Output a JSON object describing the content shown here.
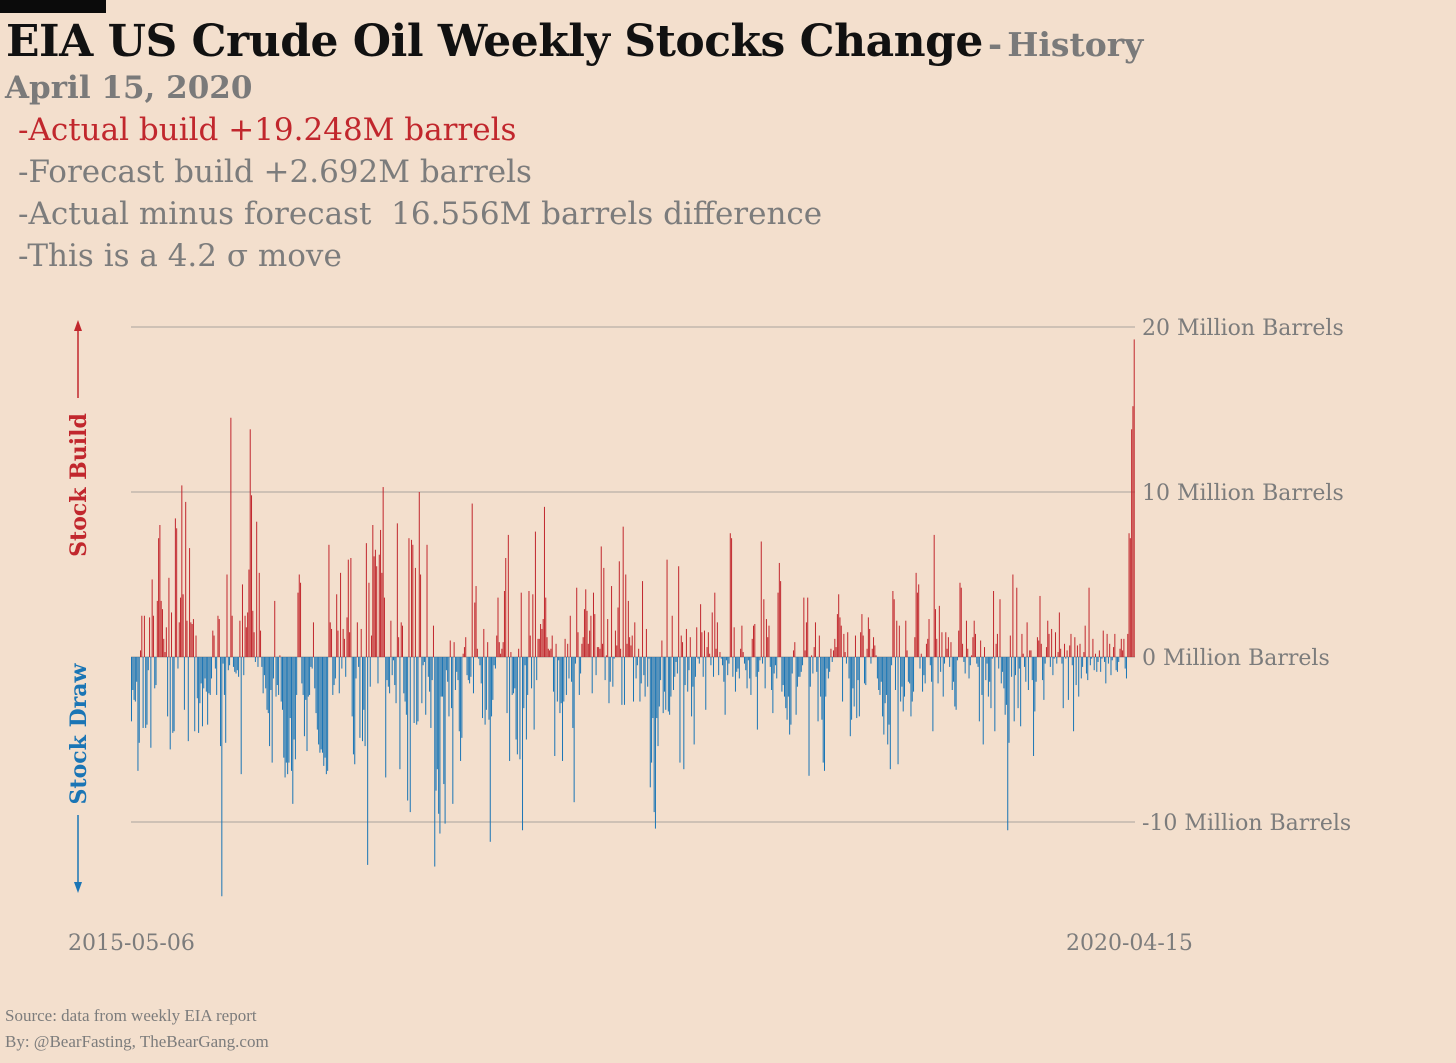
{
  "header": {
    "title": "EIA US Crude Oil Weekly Stocks Change",
    "title_sep": "-",
    "subtitle": "History",
    "date": "April 15, 2020"
  },
  "notes": {
    "actual": "-Actual build +19.248M barrels",
    "forecast": "-Forecast build +2.692M barrels",
    "diff": "-Actual minus forecast  16.556M barrels difference",
    "sigma": "-This is a 4.2 σ move"
  },
  "footer": {
    "source": "Source: data from  weekly EIA report",
    "by": "By: @BearFasting, TheBearGang.com"
  },
  "colors": {
    "build": "#c1272d",
    "draw": "#1a75b5",
    "grid": "#a9a39d",
    "text": "#7c7c7c"
  },
  "chart_data": {
    "type": "bar",
    "x_start": "2015-05-06",
    "x_end": "2020-04-15",
    "ylim": [
      -15,
      20.5
    ],
    "yticks": [
      {
        "value": 20,
        "label": "20 Million Barrels"
      },
      {
        "value": 10,
        "label": "10 Million Barrels"
      },
      {
        "value": 0,
        "label": "0 Million Barrels"
      },
      {
        "value": -10,
        "label": "-10 Million Barrels"
      }
    ],
    "build_label": "Stock Build",
    "draw_label": "Stock Draw",
    "latest_value": 19.248,
    "values": [
      -3.9,
      -2.0,
      -2.6,
      -2.7,
      -1.5,
      -6.9,
      -5.2,
      0.4,
      2.5,
      -4.3,
      2.5,
      -4.3,
      -4.1,
      -0.8,
      2.4,
      -5.5,
      4.7,
      2.5,
      -1.9,
      -1.7,
      3.4,
      7.2,
      8.0,
      3.4,
      2.9,
      1.1,
      0.3,
      1.8,
      -3.6,
      4.8,
      -5.6,
      2.7,
      -4.6,
      -4.5,
      8.4,
      7.8,
      -0.7,
      2.1,
      3.6,
      10.4,
      3.8,
      -3.2,
      9.4,
      2.2,
      -5.1,
      6.6,
      2.1,
      2.0,
      2.3,
      -4.5,
      1.3,
      -2.5,
      -4.6,
      -2.8,
      -1.6,
      -4.2,
      -1.9,
      -1.3,
      -2.1,
      -4.1,
      -2.2,
      -2.3,
      -1.3,
      1.6,
      1.3,
      -0.7,
      -2.3,
      2.5,
      2.3,
      -5.4,
      -14.5,
      -0.4,
      -2.3,
      -5.2,
      5.0,
      -0.8,
      -0.5,
      14.5,
      2.5,
      -0.6,
      -0.9,
      -1.0,
      -0.8,
      -1.2,
      2.2,
      -7.1,
      4.4,
      -1.1,
      2.5,
      1.8,
      2.7,
      5.3,
      13.8,
      9.8,
      2.8,
      1.5,
      -0.3,
      8.2,
      -0.6,
      5.1,
      1.6,
      -0.6,
      -2.2,
      -1.1,
      -1.9,
      -3.2,
      -3.4,
      -5.4,
      -2.0,
      -6.4,
      -1.3,
      3.4,
      -2.4,
      -1.7,
      -2.3,
      0.1,
      -2.7,
      -3.2,
      -6.1,
      -7.3,
      -6.4,
      -7.1,
      -6.4,
      -3.7,
      -6.9,
      -8.9,
      -5.0,
      -6.2,
      -2.3,
      3.9,
      5.0,
      4.5,
      -1.6,
      -2.3,
      -4.8,
      -2.6,
      -5.7,
      -2.4,
      -2.3,
      -0.6,
      -0.7,
      2.1,
      -1.9,
      -3.4,
      -4.4,
      -5.3,
      -5.8,
      -5.6,
      -5.8,
      -6.6,
      -6.1,
      -7.1,
      -6.9,
      6.8,
      2.1,
      1.7,
      -2.3,
      -1.7,
      -1.3,
      3.8,
      1.6,
      -2.2,
      5.1,
      -0.7,
      1.7,
      1.1,
      -1.2,
      2.4,
      5.9,
      1.5,
      6.0,
      -3.6,
      -5.9,
      -6.5,
      -1.3,
      2.1,
      -0.6,
      -4.9,
      1.7,
      -5.1,
      -3.2,
      -5.4,
      6.9,
      -12.6,
      4.5,
      -1.8,
      1.3,
      8.0,
      6.1,
      6.5,
      5.5,
      -1.6,
      6.2,
      7.7,
      5.1,
      10.3,
      3.6,
      -7.3,
      -1.4,
      -1.8,
      -2.2,
      2.2,
      -1.1,
      -0.2,
      -1.7,
      -2.8,
      8.1,
      1.2,
      -6.8,
      2.1,
      1.9,
      -2.2,
      -2.7,
      -3.5,
      -8.7,
      7.2,
      -9.4,
      7.1,
      6.8,
      -4.0,
      5.4,
      -4.1,
      -3.9,
      10.0,
      5.0,
      -2.8,
      -0.5,
      -0.3,
      -3.5,
      6.8,
      -1.2,
      -2.1,
      -4.3,
      -1.4,
      1.9,
      -12.7,
      -8.1,
      -6.8,
      -9.5,
      -10.7,
      -2.4,
      -2.4,
      -7.7,
      -10.1,
      -0.8,
      -1.5,
      -3.6,
      1.0,
      -3.1,
      -8.9,
      0.9,
      -2.0,
      -0.9,
      -1.4,
      -4.5,
      -6.3,
      -4.9,
      0.2,
      0.6,
      1.2,
      -1.1,
      -1.4,
      -1.6,
      -1.2,
      9.3,
      -2.2,
      3.3,
      4.3,
      0.5,
      -0.1,
      -0.5,
      -1.6,
      -3.7,
      1.7,
      -4.1,
      -3.2,
      0.9,
      -3.8,
      -11.2,
      -3.6,
      -2.6,
      -0.5,
      -0.7,
      1.3,
      3.6,
      0.9,
      0.2,
      0.5,
      0.9,
      4.0,
      6.0,
      -3.4,
      7.4,
      -6.3,
      0.3,
      -2.3,
      -2.2,
      -1.9,
      -5.0,
      -5.9,
      0.5,
      -6.2,
      3.9,
      -10.5,
      -3.1,
      -0.5,
      -5.0,
      -2.3,
      4.0,
      1.3,
      -1.9,
      3.8,
      -4.4,
      7.6,
      -1.4,
      1.1,
      1.1,
      2.0,
      1.7,
      2.3,
      9.1,
      3.6,
      1.2,
      0.5,
      0.4,
      0.5,
      1.3,
      -2.1,
      -6.0,
      0.8,
      -2.7,
      -0.2,
      -3.4,
      -2.8,
      -6.3,
      -2.7,
      1.1,
      -2.3,
      0.8,
      -1.3,
      2.5,
      -1.5,
      -4.3,
      -8.8,
      -0.4,
      4.2,
      1.5,
      -2.3,
      -1.0,
      0.8,
      1.2,
      2.9,
      4.1,
      2.8,
      0.8,
      1.6,
      2.5,
      -2.2,
      3.9,
      2.6,
      -1.1,
      0.6,
      0.6,
      0.5,
      6.7,
      0.8,
      5.4,
      -1.4,
      0.1,
      2.3,
      -2.8,
      -1.5,
      4.3,
      -1.8,
      -0.1,
      1.6,
      0.7,
      3.0,
      5.8,
      0.5,
      -2.9,
      7.9,
      -2.9,
      5.0,
      0.8,
      3.4,
      1.2,
      0.7,
      1.3,
      -2.7,
      2.1,
      -1.3,
      -0.5,
      0.5,
      -2.7,
      -1.6,
      4.6,
      -1.1,
      -2.4,
      1.7,
      -1.8,
      -0.1,
      -7.9,
      -6.4,
      -3.7,
      -9.4,
      -10.4,
      -3.7,
      -5.4,
      -3.0,
      -1.4,
      1.0,
      -3.4,
      -2.1,
      -3.2,
      5.9,
      -3.3,
      -3.5,
      -2.4,
      2.5,
      -2.0,
      -1.2,
      -0.3,
      -1.0,
      5.5,
      -6.4,
      1.3,
      0.9,
      -6.8,
      -1.7,
      1.7,
      -2.1,
      -0.8,
      1.2,
      -3.6,
      -1.8,
      -5.3,
      -1.2,
      1.8,
      -0.1,
      -0.4,
      3.2,
      1.5,
      -1.2,
      1.6,
      -3.2,
      0.6,
      1.5,
      0.2,
      -0.5,
      2.7,
      -1.2,
      3.9,
      0.5,
      2.1,
      -1.1,
      0.3,
      -0.1,
      -0.5,
      -1.5,
      -3.5,
      -0.2,
      -1.1,
      -0.4,
      7.5,
      7.2,
      -1.2,
      1.8,
      -2.1,
      -0.9,
      -0.7,
      -1.3,
      0.5,
      1.9,
      0.3,
      -0.4,
      -0.8,
      -1.9,
      -0.2,
      -1.3,
      -2.3,
      1.1,
      1.9,
      2.0,
      -1.2,
      -4.4,
      -0.9,
      -0.2,
      7.0,
      -0.4,
      3.5,
      -1.9,
      2.3,
      1.2,
      1.9,
      -0.6,
      -2.0,
      -3.4,
      -1.0,
      -0.5,
      -1.3,
      3.9,
      5.7,
      4.6,
      -2.1,
      -1.7,
      -2.4,
      -3.1,
      -3.8,
      -2.4,
      -4.7,
      -4.1,
      -1.0,
      0.4,
      0.9,
      -3.5,
      -1.8,
      -1.2,
      -1.2,
      -0.9,
      -0.5,
      3.6,
      0.4,
      2.1,
      3.6,
      -7.2,
      -1.8,
      0.1,
      -1.0,
      0.6,
      2.1,
      -0.9,
      -3.9,
      1.3,
      -2.4,
      -3.8,
      -6.4,
      -6.9,
      -2.4,
      -0.7,
      -1.3,
      -0.9,
      0.5,
      -0.3,
      0.4,
      1.1,
      0.6,
      2.6,
      3.8,
      2.4,
      1.9,
      -2.7,
      1.4,
      0.3,
      -0.4,
      1.5,
      -1.3,
      -4.8,
      -3.8,
      -1.9,
      -3.0,
      1.3,
      -3.7,
      -1.4,
      -3.6,
      1.5,
      2.6,
      1.3,
      -1.6,
      -1.7,
      0.5,
      2.4,
      1.7,
      -0.4,
      0.5,
      1.2,
      0.7,
      0.1,
      -1.3,
      -2.0,
      -2.3,
      -1.5,
      -3.6,
      -4.7,
      -2.8,
      -2.3,
      -5.3,
      -4.1,
      -6.8,
      -0.5,
      4.0,
      3.5,
      -2.0,
      2.2,
      -6.5,
      1.9,
      -2.7,
      -1.8,
      -3.3,
      -2.4,
      2.2,
      0.4,
      -1.5,
      -1.6,
      -3.6,
      -2.7,
      -2.1,
      1.2,
      5.1,
      3.9,
      4.4,
      -0.7,
      0.2,
      -2.1,
      -1.1,
      -1.6,
      0.8,
      1.1,
      2.3,
      -0.5,
      -1.5,
      -4.5,
      7.4,
      2.9,
      1.1,
      -1.6,
      3.1,
      -0.9,
      1.5,
      -2.4,
      -0.4,
      1.5,
      0.5,
      1.2,
      -0.6,
      0.9,
      -2.0,
      -1.5,
      -3.0,
      -3.2,
      -0.2,
      1.6,
      4.5,
      4.2,
      0.8,
      -0.3,
      -1.0,
      2.2,
      0.5,
      -1.3,
      -0.5,
      0.1,
      1.2,
      2.2,
      1.4,
      -0.4,
      -0.6,
      -3.9,
      1.0,
      -2.3,
      -5.3,
      0.6,
      -1.4,
      -0.4,
      -2.4,
      -1.5,
      -3.1,
      -0.1,
      4.0,
      -4.5,
      0.8,
      1.4,
      -0.7,
      3.5,
      -1.6,
      -0.9,
      -1.9,
      -3.5,
      -2.9,
      -10.5,
      -5.2,
      1.3,
      -1.2,
      5.0,
      -3.9,
      -1.1,
      4.2,
      -3.1,
      -0.7,
      -4.2,
      1.4,
      0.2,
      -0.6,
      -1.5,
      2.1,
      -2.0,
      0.4,
      0.4,
      -1.4,
      -6.0,
      -3.3,
      -1.5,
      1.2,
      1.0,
      3.7,
      0.8,
      -1.4,
      -2.6,
      -0.4,
      0.6,
      2.2,
      1.4,
      -0.6,
      1.7,
      -1.1,
      -0.1,
      1.5,
      -0.4,
      0.3,
      2.7,
      0.5,
      -0.4,
      -3.1,
      0.8,
      -0.1,
      0.4,
      -2.6,
      0.7,
      1.4,
      -0.5,
      -4.5,
      1.2,
      -1.7,
      0.7,
      -2.4,
      0.8,
      -1.3,
      -0.6,
      0.3,
      1.9,
      -1.0,
      -1.4,
      4.2,
      -0.5,
      -0.1,
      1.1,
      -0.8,
      0.2,
      -0.9,
      -0.3,
      0.4,
      -0.9,
      -0.1,
      1.6,
      -0.3,
      -1.6,
      1.4,
      -0.4,
      0.8,
      -1.1,
      -0.2,
      0.6,
      1.4,
      -0.8,
      -0.9,
      -0.3,
      0.5,
      1.1,
      0.4,
      1.1,
      -0.7,
      -1.3,
      1.4,
      7.5,
      7.2,
      13.8,
      15.2,
      19.248
    ]
  }
}
